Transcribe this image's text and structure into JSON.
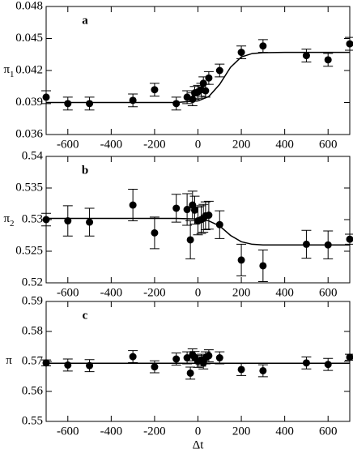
{
  "chart_data": [
    {
      "type": "scatter",
      "label": "a",
      "ylabel": "π",
      "ylabel_subscript": "1",
      "color": "#000000",
      "xlim": [
        -700,
        700
      ],
      "xticks": [
        -600,
        -400,
        -200,
        0,
        200,
        400,
        600
      ],
      "ylim": [
        0.036,
        0.048
      ],
      "yticks": [
        0.036,
        0.039,
        0.042,
        0.045,
        0.048
      ],
      "x": [
        -700,
        -600,
        -500,
        -300,
        -200,
        -100,
        -50,
        -25,
        -15,
        0,
        15,
        25,
        35,
        50,
        100,
        200,
        300,
        500,
        600,
        700
      ],
      "values": [
        0.0395,
        0.0389,
        0.0389,
        0.0392,
        0.0402,
        0.0389,
        0.0395,
        0.0393,
        0.0399,
        0.04,
        0.0402,
        0.0408,
        0.0401,
        0.0413,
        0.042,
        0.0437,
        0.0443,
        0.0434,
        0.043,
        0.0445
      ],
      "errors": [
        0.0006,
        0.0006,
        0.0006,
        0.0006,
        0.0006,
        0.0006,
        0.0006,
        0.0006,
        0.0006,
        0.0006,
        0.0006,
        0.0006,
        0.0006,
        0.0006,
        0.0006,
        0.0006,
        0.0006,
        0.0006,
        0.0006,
        0.0006
      ],
      "fit_x": [
        -700,
        -300,
        -100,
        0,
        50,
        100,
        150,
        200,
        250,
        300,
        400,
        700
      ],
      "fit_values": [
        0.039,
        0.039,
        0.039,
        0.03915,
        0.03956,
        0.0407,
        0.0423,
        0.04327,
        0.04359,
        0.04367,
        0.0437,
        0.0437
      ]
    },
    {
      "type": "scatter",
      "label": "b",
      "ylabel": "π",
      "ylabel_subscript": "2",
      "color": "#000000",
      "xlim": [
        -700,
        700
      ],
      "xticks": [
        -600,
        -400,
        -200,
        0,
        200,
        400,
        600
      ],
      "ylim": [
        0.52,
        0.54
      ],
      "yticks": [
        0.52,
        0.525,
        0.53,
        0.535,
        0.54
      ],
      "x": [
        -700,
        -600,
        -500,
        -300,
        -200,
        -100,
        -50,
        -35,
        -25,
        -15,
        0,
        15,
        25,
        35,
        50,
        100,
        200,
        300,
        500,
        600,
        700
      ],
      "values": [
        0.53,
        0.5298,
        0.5296,
        0.5323,
        0.5279,
        0.5318,
        0.5316,
        0.5268,
        0.5323,
        0.5315,
        0.5298,
        0.53,
        0.5302,
        0.5306,
        0.5307,
        0.5292,
        0.5236,
        0.5227,
        0.5261,
        0.526,
        0.5269
      ],
      "errors": [
        0.001,
        0.0024,
        0.0022,
        0.0025,
        0.0025,
        0.0022,
        0.0025,
        0.003,
        0.0022,
        0.0022,
        0.0022,
        0.0022,
        0.0022,
        0.0022,
        0.0022,
        0.0022,
        0.0025,
        0.0025,
        0.0022,
        0.0022,
        0.0008
      ],
      "fit_x": [
        -700,
        -300,
        -100,
        0,
        50,
        100,
        150,
        200,
        250,
        300,
        400,
        700
      ],
      "fit_values": [
        0.5302,
        0.5302,
        0.5302,
        0.5301,
        0.5298,
        0.529,
        0.5275,
        0.5265,
        0.5261,
        0.526,
        0.526,
        0.526
      ]
    },
    {
      "type": "scatter",
      "label": "c",
      "ylabel": "π",
      "xlabel": "Δt",
      "color": "#000000",
      "xlim": [
        -700,
        700
      ],
      "xticks": [
        -600,
        -400,
        -200,
        0,
        200,
        400,
        600
      ],
      "ylim": [
        0.55,
        0.59
      ],
      "yticks": [
        0.55,
        0.56,
        0.57,
        0.58,
        0.59
      ],
      "x": [
        -700,
        -600,
        -500,
        -300,
        -200,
        -100,
        -50,
        -35,
        -25,
        -15,
        0,
        15,
        25,
        35,
        50,
        100,
        200,
        300,
        500,
        600,
        700
      ],
      "values": [
        0.5695,
        0.5688,
        0.5686,
        0.5716,
        0.5682,
        0.5708,
        0.5712,
        0.5661,
        0.5722,
        0.5713,
        0.57,
        0.5704,
        0.5695,
        0.5712,
        0.5719,
        0.5712,
        0.5673,
        0.5669,
        0.5695,
        0.569,
        0.5714
      ],
      "errors": [
        0.001,
        0.002,
        0.002,
        0.002,
        0.002,
        0.002,
        0.002,
        0.002,
        0.002,
        0.002,
        0.002,
        0.002,
        0.002,
        0.002,
        0.002,
        0.002,
        0.002,
        0.002,
        0.002,
        0.002,
        0.001
      ],
      "fit_x": [
        -700,
        700
      ],
      "fit_values": [
        0.5694,
        0.5694
      ]
    }
  ]
}
